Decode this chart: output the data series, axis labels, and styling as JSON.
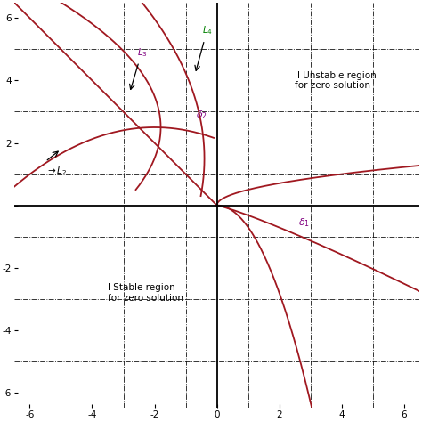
{
  "xlim": [
    -6.5,
    6.5
  ],
  "ylim": [
    -6.5,
    6.5
  ],
  "xticks": [
    -6,
    -4,
    -2,
    0,
    2,
    4,
    6
  ],
  "yticks": [
    -6,
    -4,
    -2,
    0,
    2,
    4,
    6
  ],
  "dash_dot_x": [
    -5,
    -3,
    -1,
    1,
    3,
    5
  ],
  "dash_dot_y": [
    -5,
    -3,
    -1,
    1,
    3,
    5
  ],
  "curve_color": "#a01820",
  "background_color": "#ffffff",
  "figsize": [
    4.74,
    4.74
  ],
  "dpi": 100,
  "lw": 1.3
}
